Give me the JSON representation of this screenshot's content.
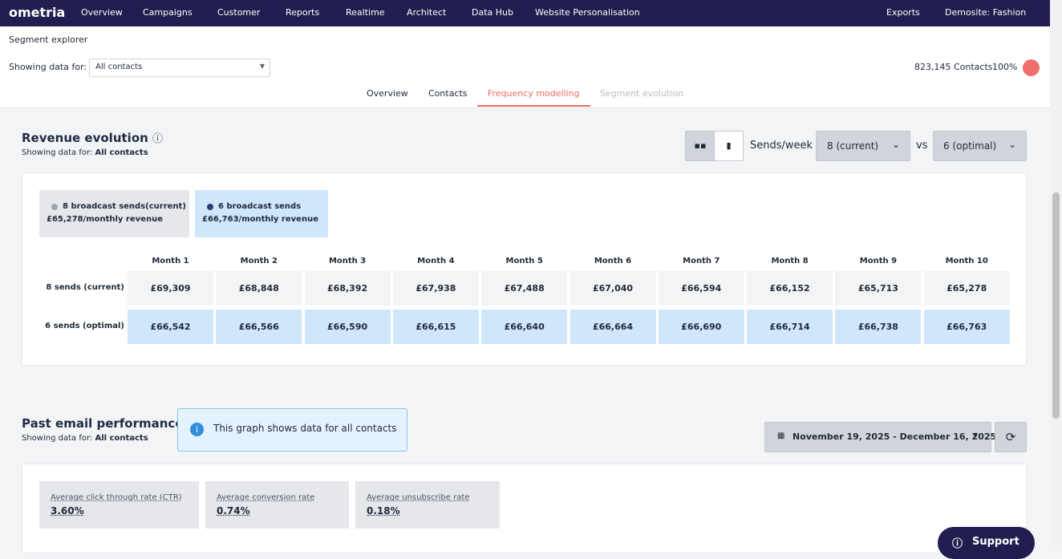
{
  "nav": {
    "logo": "ometria",
    "items": [
      "Overview",
      "Campaigns",
      "Customer",
      "Reports",
      "Realtime",
      "Architect",
      "Data Hub",
      "Website Personalisation"
    ],
    "right": [
      "Exports",
      "Demosite: Fashion"
    ]
  },
  "header": {
    "title": "Segment explorer"
  },
  "filter": {
    "label": "Showing data for:",
    "select": "All contacts",
    "contacts": "823,145 Contacts",
    "percent": "100%"
  },
  "tabs": [
    "Overview",
    "Contacts",
    "Frequency modelling",
    "Segment evolution"
  ],
  "revenue": {
    "title": "Revenue evolution",
    "subtitle_label": "Showing data for:",
    "subtitle_value": "All contacts",
    "sends_label": "Sends/week",
    "current": "8 (current)",
    "vs": "vs",
    "optimal": "6 (optimal)",
    "cards": [
      {
        "title": "8 broadcast sends(current)",
        "value": "£65,278/monthly revenue"
      },
      {
        "title": "6 broadcast sends",
        "value": "£66,763/monthly revenue"
      }
    ],
    "table": {
      "months": [
        "Month 1",
        "Month 2",
        "Month 3",
        "Month 4",
        "Month 5",
        "Month 6",
        "Month 7",
        "Month 8",
        "Month 9",
        "Month 10"
      ],
      "rows": [
        {
          "label": "8 sends (current)",
          "cells": [
            "£69,309",
            "£68,848",
            "£68,392",
            "£67,938",
            "£67,488",
            "£67,040",
            "£66,594",
            "£66,152",
            "£65,713",
            "£65,278"
          ]
        },
        {
          "label": "6 sends (optimal)",
          "cells": [
            "£66,542",
            "£66,566",
            "£66,590",
            "£66,615",
            "£66,640",
            "£66,664",
            "£66,690",
            "£66,714",
            "£66,738",
            "£66,763"
          ]
        }
      ]
    }
  },
  "past": {
    "title": "Past email performance",
    "subtitle_label": "Showing data for:",
    "subtitle_value": "All contacts",
    "info": "This graph shows data for all contacts",
    "date": "November 19, 2025 - December 16, 2025",
    "metrics": [
      {
        "label": "Average click through rate (CTR)",
        "value": "3.60%"
      },
      {
        "label": "Average conversion rate",
        "value": "0.74%"
      },
      {
        "label": "Average unsubscribe rate",
        "value": "0.18%"
      }
    ]
  },
  "support": "Support"
}
